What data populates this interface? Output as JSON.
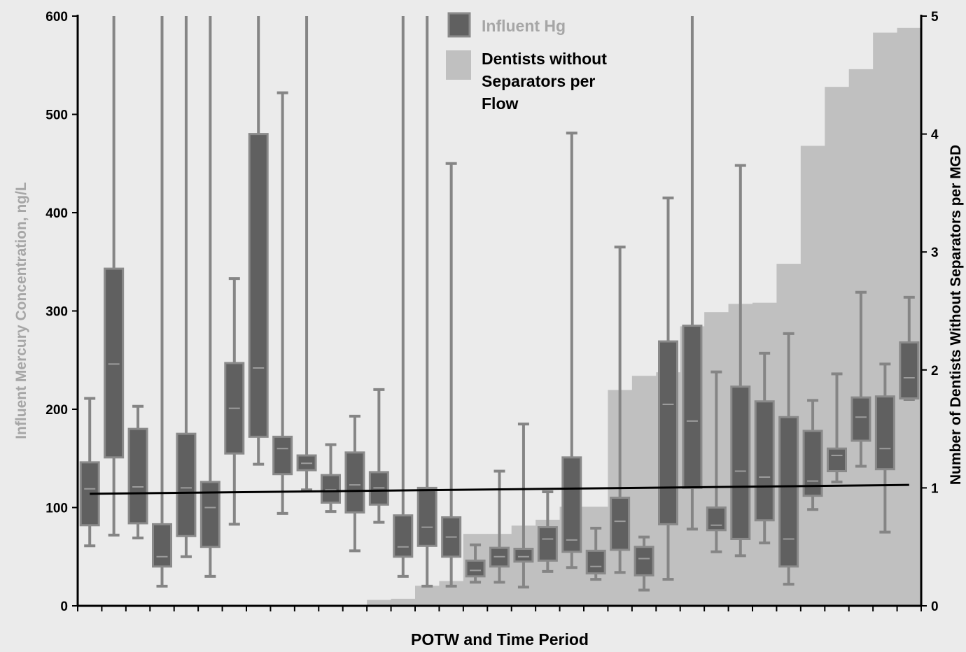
{
  "chart_data": {
    "type": "box",
    "title": "",
    "xlabel": "POTW and Time Period",
    "ylabel_left": "Influent Mercury Concentration, ng/L",
    "ylabel_right": "Number of Dentists Without Separators per MGD",
    "ylim_left": [
      0,
      600
    ],
    "ylim_right": [
      0,
      5
    ],
    "yticks_left": [
      "0",
      "100",
      "200",
      "300",
      "400",
      "500",
      "600"
    ],
    "yticks_right": [
      "0",
      "1",
      "2",
      "3",
      "4",
      "5"
    ],
    "legend": {
      "placement": "top-center",
      "items": [
        {
          "label": "Influent Hg",
          "kind": "box"
        },
        {
          "label": "Dentists without Separators per Flow",
          "label_lines": [
            "Dentists without",
            "Separators per",
            "Flow"
          ],
          "kind": "area"
        }
      ]
    },
    "colors": {
      "background": "#ebebeb",
      "box_fill": "#606060",
      "box_edge": "#8a8a8a",
      "whisker": "#858585",
      "median": "#9c9c9c",
      "area": "#c0c0c0",
      "trend": "#000000",
      "axis": "#000000",
      "left_label": "#a6a6a6"
    },
    "groups": 35,
    "boxes": [
      {
        "min": 61,
        "q1": 82,
        "median": 119,
        "q3": 146,
        "max": 211
      },
      {
        "min": 72,
        "q1": 151,
        "median": 246,
        "q3": 343,
        "max": 600
      },
      {
        "min": 69,
        "q1": 84,
        "median": 121,
        "q3": 180,
        "max": 203
      },
      {
        "min": 20,
        "q1": 40,
        "median": 50,
        "q3": 83,
        "max": 600
      },
      {
        "min": 50,
        "q1": 71,
        "median": 120,
        "q3": 175,
        "max": 600
      },
      {
        "min": 30,
        "q1": 60,
        "median": 100,
        "q3": 126,
        "max": 600
      },
      {
        "min": 83,
        "q1": 155,
        "median": 201,
        "q3": 247,
        "max": 333
      },
      {
        "min": 144,
        "q1": 172,
        "median": 242,
        "q3": 480,
        "max": 600
      },
      {
        "min": 94,
        "q1": 134,
        "median": 160,
        "q3": 172,
        "max": 522
      },
      {
        "min": 118,
        "q1": 138,
        "median": 145,
        "q3": 153,
        "max": 600
      },
      {
        "min": 96,
        "q1": 105,
        "median": 118,
        "q3": 133,
        "max": 164
      },
      {
        "min": 56,
        "q1": 95,
        "median": 123,
        "q3": 156,
        "max": 193
      },
      {
        "min": 85,
        "q1": 103,
        "median": 120,
        "q3": 136,
        "max": 220
      },
      {
        "min": 30,
        "q1": 50,
        "median": 60,
        "q3": 92,
        "max": 600
      },
      {
        "min": 20,
        "q1": 61,
        "median": 80,
        "q3": 120,
        "max": 600
      },
      {
        "min": 20,
        "q1": 50,
        "median": 70,
        "q3": 90,
        "max": 450
      },
      {
        "min": 24,
        "q1": 30,
        "median": 36,
        "q3": 46,
        "max": 62
      },
      {
        "min": 24,
        "q1": 40,
        "median": 50,
        "q3": 59,
        "max": 137
      },
      {
        "min": 19,
        "q1": 45,
        "median": 50,
        "q3": 58,
        "max": 185
      },
      {
        "min": 35,
        "q1": 46,
        "median": 68,
        "q3": 80,
        "max": 116
      },
      {
        "min": 39,
        "q1": 55,
        "median": 67,
        "q3": 151,
        "max": 481
      },
      {
        "min": 27,
        "q1": 33,
        "median": 40,
        "q3": 56,
        "max": 79
      },
      {
        "min": 34,
        "q1": 57,
        "median": 86,
        "q3": 110,
        "max": 365
      },
      {
        "min": 16,
        "q1": 31,
        "median": 48,
        "q3": 60,
        "max": 70
      },
      {
        "min": 27,
        "q1": 83,
        "median": 205,
        "q3": 269,
        "max": 415
      },
      {
        "min": 78,
        "q1": 120,
        "median": 188,
        "q3": 285,
        "max": 600
      },
      {
        "min": 55,
        "q1": 77,
        "median": 82,
        "q3": 100,
        "max": 238
      },
      {
        "min": 51,
        "q1": 68,
        "median": 137,
        "q3": 223,
        "max": 448
      },
      {
        "min": 64,
        "q1": 87,
        "median": 131,
        "q3": 208,
        "max": 257
      },
      {
        "min": 22,
        "q1": 40,
        "median": 68,
        "q3": 192,
        "max": 277
      },
      {
        "min": 98,
        "q1": 112,
        "median": 127,
        "q3": 178,
        "max": 209
      },
      {
        "min": 126,
        "q1": 137,
        "median": 153,
        "q3": 160,
        "max": 236
      },
      {
        "min": 142,
        "q1": 168,
        "median": 192,
        "q3": 212,
        "max": 319
      },
      {
        "min": 75,
        "q1": 139,
        "median": 160,
        "q3": 213,
        "max": 246
      },
      {
        "min": 210,
        "q1": 211,
        "median": 232,
        "q3": 268,
        "max": 314
      }
    ],
    "dentists_per_mgd": [
      0,
      0,
      0,
      0,
      0,
      0,
      0,
      0,
      0,
      0,
      0,
      0,
      0.05,
      0.06,
      0.17,
      0.21,
      0.61,
      0.61,
      0.68,
      0.73,
      0.84,
      0.84,
      1.83,
      1.95,
      1.98,
      2.37,
      2.49,
      2.56,
      2.57,
      2.9,
      3.9,
      4.4,
      4.55,
      4.86,
      4.9
    ],
    "trend_line": {
      "start": 114,
      "end": 123
    }
  }
}
